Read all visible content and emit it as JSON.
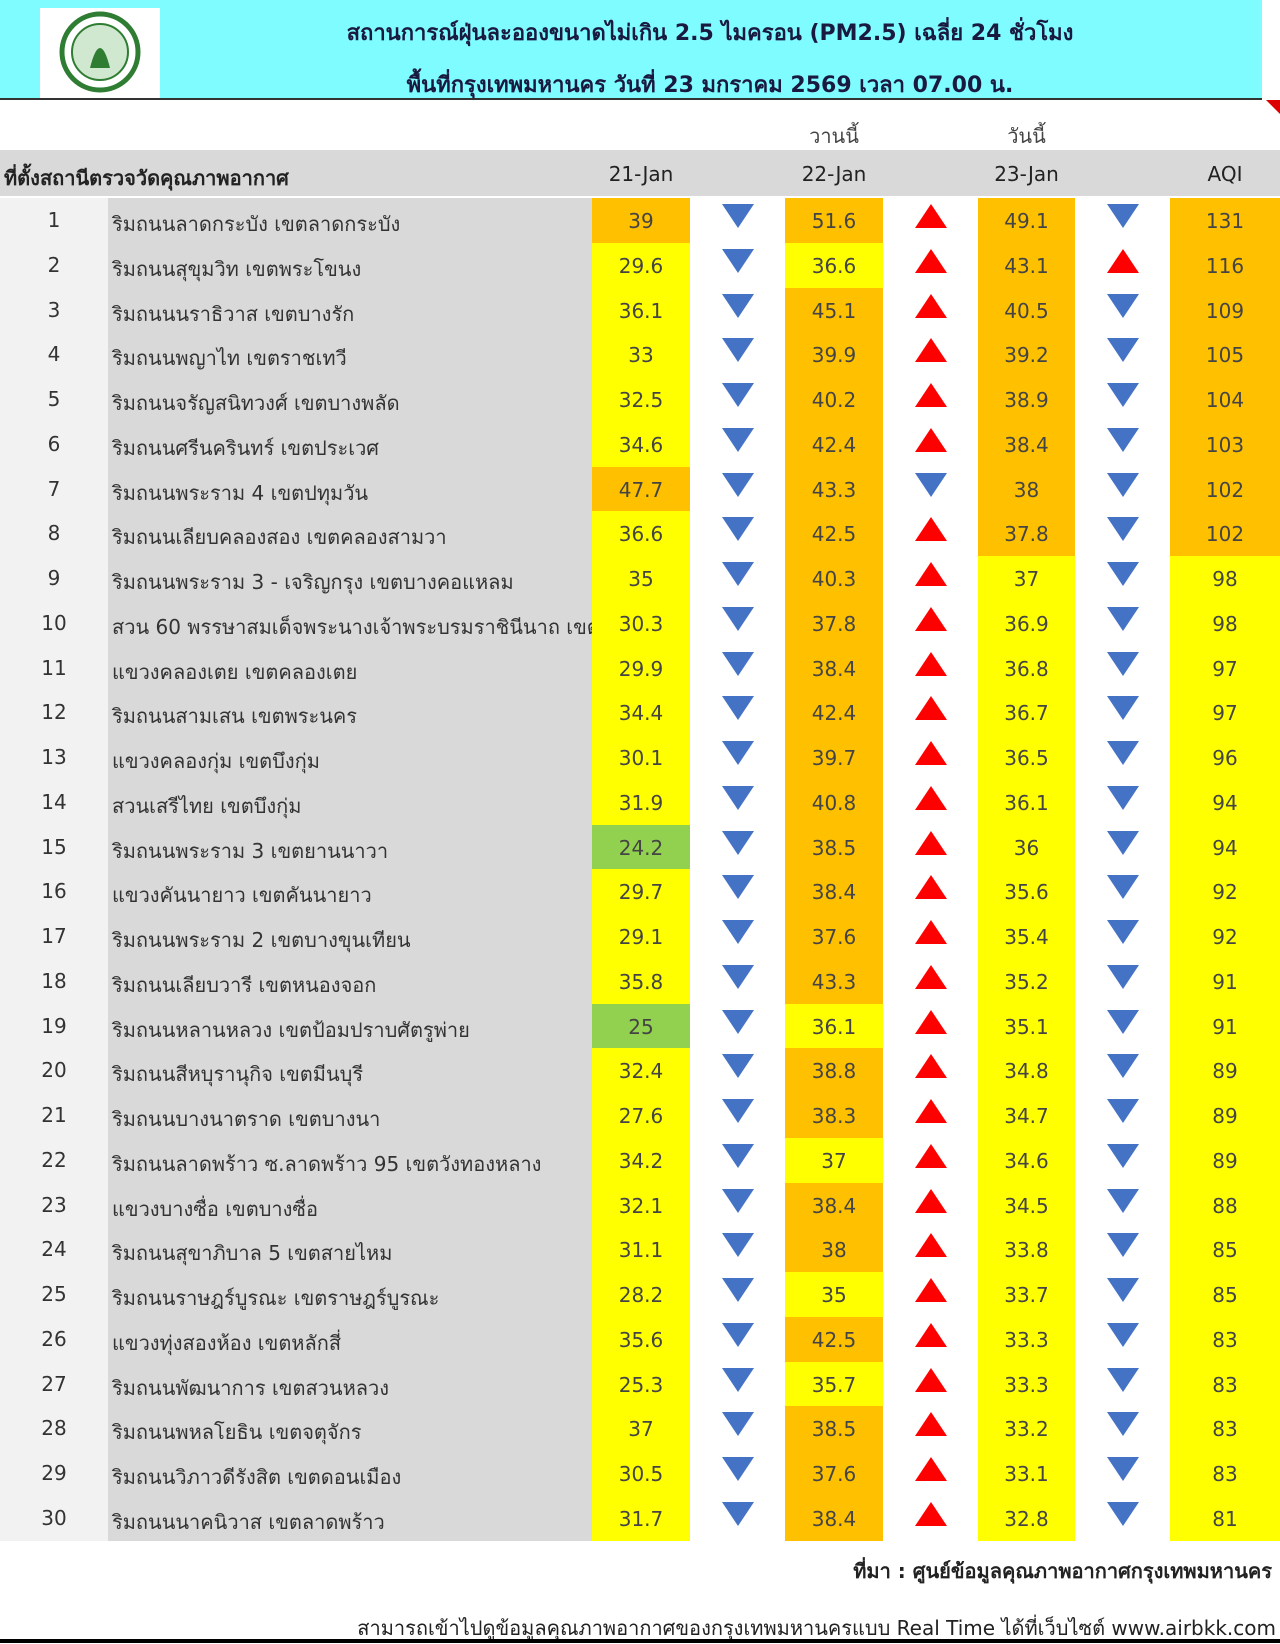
{
  "header": {
    "title": "สถานการณ์ฝุ่นละอองขนาดไม่เกิน 2.5 ไมครอน (PM2.5) เฉลี่ย 24 ชั่วโมง",
    "subtitle": "พื้นที่กรุงเทพมหานคร วันที่ 23 มกราคม 2569 เวลา 07.00 น."
  },
  "table": {
    "day_labels": {
      "yesterday": "วานนี้",
      "today": "วันนี้"
    },
    "columns": {
      "station": "ที่ตั้งสถานีตรวจวัดคุณภาพอากาศ",
      "d21": "21-Jan",
      "d22": "22-Jan",
      "d23": "23-Jan",
      "aqi": "AQI"
    },
    "palette": {
      "green": "#92d050",
      "yellow": "#ffff00",
      "orange": "#ffc000",
      "up": "#ff0000",
      "down": "#4472c4"
    },
    "rows": [
      {
        "no": 1,
        "station": "ริมถนนลาดกระบัง เขตลาดกระบัง",
        "d21": 39,
        "d22": 51.6,
        "d23": 49.1,
        "aqi": 131,
        "fills": [
          "orange",
          "orange",
          "orange",
          "orange"
        ],
        "arrows": [
          "down",
          "up",
          "down"
        ]
      },
      {
        "no": 2,
        "station": "ริมถนนสุขุมวิท เขตพระโขนง",
        "d21": 29.6,
        "d22": 36.6,
        "d23": 43.1,
        "aqi": 116,
        "fills": [
          "yellow",
          "yellow",
          "orange",
          "orange"
        ],
        "arrows": [
          "down",
          "up",
          "up"
        ]
      },
      {
        "no": 3,
        "station": "ริมถนนนราธิวาส เขตบางรัก",
        "d21": 36.1,
        "d22": 45.1,
        "d23": 40.5,
        "aqi": 109,
        "fills": [
          "yellow",
          "orange",
          "orange",
          "orange"
        ],
        "arrows": [
          "down",
          "up",
          "down"
        ]
      },
      {
        "no": 4,
        "station": "ริมถนนพญาไท เขตราชเทวี",
        "d21": 33,
        "d22": 39.9,
        "d23": 39.2,
        "aqi": 105,
        "fills": [
          "yellow",
          "orange",
          "orange",
          "orange"
        ],
        "arrows": [
          "down",
          "up",
          "down"
        ]
      },
      {
        "no": 5,
        "station": "ริมถนนจรัญสนิทวงศ์ เขตบางพลัด",
        "d21": 32.5,
        "d22": 40.2,
        "d23": 38.9,
        "aqi": 104,
        "fills": [
          "yellow",
          "orange",
          "orange",
          "orange"
        ],
        "arrows": [
          "down",
          "up",
          "down"
        ]
      },
      {
        "no": 6,
        "station": "ริมถนนศรีนครินทร์ เขตประเวศ",
        "d21": 34.6,
        "d22": 42.4,
        "d23": 38.4,
        "aqi": 103,
        "fills": [
          "yellow",
          "orange",
          "orange",
          "orange"
        ],
        "arrows": [
          "down",
          "up",
          "down"
        ]
      },
      {
        "no": 7,
        "station": "ริมถนนพระราม 4 เขตปทุมวัน",
        "d21": 47.7,
        "d22": 43.3,
        "d23": 38,
        "aqi": 102,
        "fills": [
          "orange",
          "orange",
          "orange",
          "orange"
        ],
        "arrows": [
          "down",
          "down",
          "down"
        ]
      },
      {
        "no": 8,
        "station": "ริมถนนเลียบคลองสอง เขตคลองสามวา",
        "d21": 36.6,
        "d22": 42.5,
        "d23": 37.8,
        "aqi": 102,
        "fills": [
          "yellow",
          "orange",
          "orange",
          "orange"
        ],
        "arrows": [
          "down",
          "up",
          "down"
        ]
      },
      {
        "no": 9,
        "station": "ริมถนนพระราม 3 - เจริญกรุง เขตบางคอแหลม",
        "d21": 35,
        "d22": 40.3,
        "d23": 37,
        "aqi": 98,
        "fills": [
          "yellow",
          "orange",
          "yellow",
          "yellow"
        ],
        "arrows": [
          "down",
          "up",
          "down"
        ]
      },
      {
        "no": 10,
        "station": "สวน 60 พรรษาสมเด็จพระนางเจ้าพระบรมราชินีนาถ เขต",
        "d21": 30.3,
        "d22": 37.8,
        "d23": 36.9,
        "aqi": 98,
        "fills": [
          "yellow",
          "orange",
          "yellow",
          "yellow"
        ],
        "arrows": [
          "down",
          "up",
          "down"
        ]
      },
      {
        "no": 11,
        "station": "แขวงคลองเตย เขตคลองเตย",
        "d21": 29.9,
        "d22": 38.4,
        "d23": 36.8,
        "aqi": 97,
        "fills": [
          "yellow",
          "orange",
          "yellow",
          "yellow"
        ],
        "arrows": [
          "down",
          "up",
          "down"
        ]
      },
      {
        "no": 12,
        "station": "ริมถนนสามเสน เขตพระนคร",
        "d21": 34.4,
        "d22": 42.4,
        "d23": 36.7,
        "aqi": 97,
        "fills": [
          "yellow",
          "orange",
          "yellow",
          "yellow"
        ],
        "arrows": [
          "down",
          "up",
          "down"
        ]
      },
      {
        "no": 13,
        "station": "แขวงคลองกุ่ม เขตบึงกุ่ม",
        "d21": 30.1,
        "d22": 39.7,
        "d23": 36.5,
        "aqi": 96,
        "fills": [
          "yellow",
          "orange",
          "yellow",
          "yellow"
        ],
        "arrows": [
          "down",
          "up",
          "down"
        ]
      },
      {
        "no": 14,
        "station": "สวนเสรีไทย  เขตบึงกุ่ม",
        "d21": 31.9,
        "d22": 40.8,
        "d23": 36.1,
        "aqi": 94,
        "fills": [
          "yellow",
          "orange",
          "yellow",
          "yellow"
        ],
        "arrows": [
          "down",
          "up",
          "down"
        ]
      },
      {
        "no": 15,
        "station": "ริมถนนพระราม 3 เขตยานนาวา",
        "d21": 24.2,
        "d22": 38.5,
        "d23": 36,
        "aqi": 94,
        "fills": [
          "green",
          "orange",
          "yellow",
          "yellow"
        ],
        "arrows": [
          "down",
          "up",
          "down"
        ]
      },
      {
        "no": 16,
        "station": "แขวงคันนายาว เขตคันนายาว",
        "d21": 29.7,
        "d22": 38.4,
        "d23": 35.6,
        "aqi": 92,
        "fills": [
          "yellow",
          "orange",
          "yellow",
          "yellow"
        ],
        "arrows": [
          "down",
          "up",
          "down"
        ]
      },
      {
        "no": 17,
        "station": "ริมถนนพระราม 2 เขตบางขุนเทียน",
        "d21": 29.1,
        "d22": 37.6,
        "d23": 35.4,
        "aqi": 92,
        "fills": [
          "yellow",
          "orange",
          "yellow",
          "yellow"
        ],
        "arrows": [
          "down",
          "up",
          "down"
        ]
      },
      {
        "no": 18,
        "station": "ริมถนนเลียบวารี เขตหนองจอก",
        "d21": 35.8,
        "d22": 43.3,
        "d23": 35.2,
        "aqi": 91,
        "fills": [
          "yellow",
          "orange",
          "yellow",
          "yellow"
        ],
        "arrows": [
          "down",
          "up",
          "down"
        ]
      },
      {
        "no": 19,
        "station": "ริมถนนหลานหลวง เขตป้อมปราบศัตรูพ่าย",
        "d21": 25,
        "d22": 36.1,
        "d23": 35.1,
        "aqi": 91,
        "fills": [
          "green",
          "yellow",
          "yellow",
          "yellow"
        ],
        "arrows": [
          "down",
          "up",
          "down"
        ]
      },
      {
        "no": 20,
        "station": "ริมถนนสีหบุรานุกิจ เขตมีนบุรี",
        "d21": 32.4,
        "d22": 38.8,
        "d23": 34.8,
        "aqi": 89,
        "fills": [
          "yellow",
          "orange",
          "yellow",
          "yellow"
        ],
        "arrows": [
          "down",
          "up",
          "down"
        ]
      },
      {
        "no": 21,
        "station": "ริมถนนบางนาตราด เขตบางนา",
        "d21": 27.6,
        "d22": 38.3,
        "d23": 34.7,
        "aqi": 89,
        "fills": [
          "yellow",
          "orange",
          "yellow",
          "yellow"
        ],
        "arrows": [
          "down",
          "up",
          "down"
        ]
      },
      {
        "no": 22,
        "station": "ริมถนนลาดพร้าว ซ.ลาดพร้าว 95 เขตวังทองหลาง",
        "d21": 34.2,
        "d22": 37,
        "d23": 34.6,
        "aqi": 89,
        "fills": [
          "yellow",
          "yellow",
          "yellow",
          "yellow"
        ],
        "arrows": [
          "down",
          "up",
          "down"
        ]
      },
      {
        "no": 23,
        "station": "แขวงบางซื่อ เขตบางซื่อ",
        "d21": 32.1,
        "d22": 38.4,
        "d23": 34.5,
        "aqi": 88,
        "fills": [
          "yellow",
          "orange",
          "yellow",
          "yellow"
        ],
        "arrows": [
          "down",
          "up",
          "down"
        ]
      },
      {
        "no": 24,
        "station": "ริมถนนสุขาภิบาล 5 เขตสายไหม",
        "d21": 31.1,
        "d22": 38,
        "d23": 33.8,
        "aqi": 85,
        "fills": [
          "yellow",
          "orange",
          "yellow",
          "yellow"
        ],
        "arrows": [
          "down",
          "up",
          "down"
        ]
      },
      {
        "no": 25,
        "station": "ริมถนนราษฎร์บูรณะ เขตราษฎร์บูรณะ",
        "d21": 28.2,
        "d22": 35,
        "d23": 33.7,
        "aqi": 85,
        "fills": [
          "yellow",
          "yellow",
          "yellow",
          "yellow"
        ],
        "arrows": [
          "down",
          "up",
          "down"
        ]
      },
      {
        "no": 26,
        "station": "แขวงทุ่งสองห้อง เขตหลักสี่",
        "d21": 35.6,
        "d22": 42.5,
        "d23": 33.3,
        "aqi": 83,
        "fills": [
          "yellow",
          "orange",
          "yellow",
          "yellow"
        ],
        "arrows": [
          "down",
          "up",
          "down"
        ]
      },
      {
        "no": 27,
        "station": "ริมถนนพัฒนาการ เขตสวนหลวง",
        "d21": 25.3,
        "d22": 35.7,
        "d23": 33.3,
        "aqi": 83,
        "fills": [
          "yellow",
          "yellow",
          "yellow",
          "yellow"
        ],
        "arrows": [
          "down",
          "up",
          "down"
        ]
      },
      {
        "no": 28,
        "station": "ริมถนนพหลโยธิน เขตจตุจักร",
        "d21": 37,
        "d22": 38.5,
        "d23": 33.2,
        "aqi": 83,
        "fills": [
          "yellow",
          "orange",
          "yellow",
          "yellow"
        ],
        "arrows": [
          "down",
          "up",
          "down"
        ]
      },
      {
        "no": 29,
        "station": "ริมถนนวิภาวดีรังสิต เขตดอนเมือง",
        "d21": 30.5,
        "d22": 37.6,
        "d23": 33.1,
        "aqi": 83,
        "fills": [
          "yellow",
          "orange",
          "yellow",
          "yellow"
        ],
        "arrows": [
          "down",
          "up",
          "down"
        ]
      },
      {
        "no": 30,
        "station": "ริมถนนนาคนิวาส เขตลาดพร้าว",
        "d21": 31.7,
        "d22": 38.4,
        "d23": 32.8,
        "aqi": 81,
        "fills": [
          "yellow",
          "orange",
          "yellow",
          "yellow"
        ],
        "arrows": [
          "down",
          "up",
          "down"
        ]
      }
    ]
  },
  "footer": {
    "source": "ที่มา : ศูนย์ข้อมูลคุณภาพอากาศกรุงเทพมหานคร",
    "note": "สามารถเข้าไปดูข้อมูลคุณภาพอากาศของกรุงเทพมหานครแบบ Real Time ได้ที่เว็บไซต์ www.airbkk.com"
  }
}
